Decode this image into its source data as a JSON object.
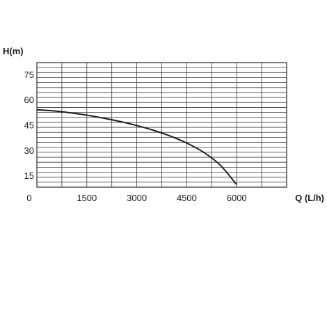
{
  "chart_data": {
    "type": "line",
    "ylabel": "H(m)",
    "xlabel": "Q (L/h)",
    "x_ticks": [
      0,
      1500,
      3000,
      4500,
      6000
    ],
    "y_ticks": [
      15,
      30,
      45,
      60,
      75
    ],
    "xlim": [
      0,
      7500
    ],
    "ylim": [
      8,
      82
    ],
    "grid": true,
    "series": [
      {
        "x": [
          0,
          500,
          1000,
          1500,
          2000,
          2500,
          3000,
          3500,
          4000,
          4500,
          5000,
          5500,
          6000
        ],
        "values": [
          54,
          53.3,
          52.2,
          50.8,
          49,
          47,
          44.6,
          41.8,
          38.4,
          34.2,
          28.8,
          21.2,
          9.5
        ]
      }
    ]
  },
  "colors": {
    "line": "#1e1e1e",
    "grid": "#3a3a3a",
    "text": "#1a1a1a"
  }
}
